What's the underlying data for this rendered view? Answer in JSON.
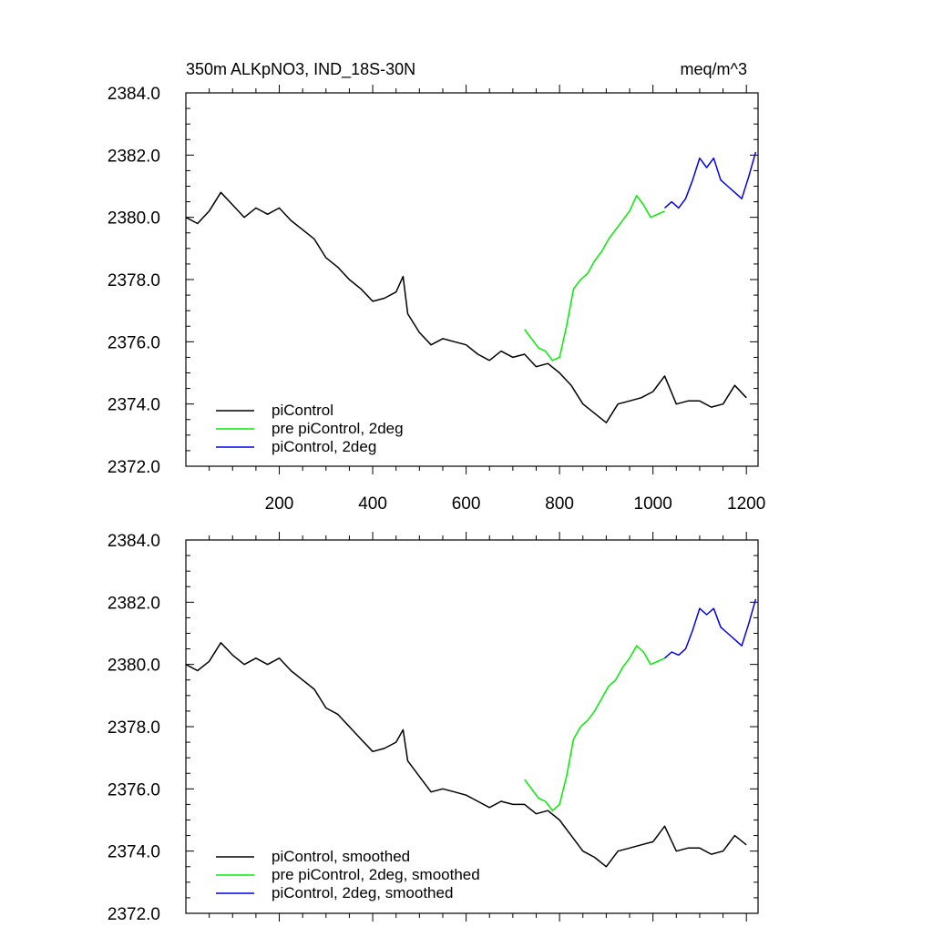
{
  "chart_data": [
    {
      "type": "line",
      "title": "350m ALKpNO3, IND_18S-30N",
      "units": "meq/m^3",
      "xlim": [
        0,
        1225
      ],
      "ylim": [
        2372.0,
        2384.0
      ],
      "yticks": [
        "2372.0",
        "2374.0",
        "2376.0",
        "2378.0",
        "2380.0",
        "2382.0",
        "2384.0"
      ],
      "xticks": [
        "200",
        "400",
        "600",
        "800",
        "1000",
        "1200"
      ],
      "series": [
        {
          "name": "piControl",
          "color": "#000000",
          "x": [
            0,
            25,
            50,
            75,
            100,
            125,
            150,
            175,
            200,
            225,
            250,
            275,
            300,
            325,
            350,
            375,
            400,
            425,
            450,
            465,
            475,
            500,
            525,
            550,
            575,
            600,
            625,
            650,
            675,
            700,
            725,
            750,
            775,
            800,
            825,
            850,
            875,
            900,
            925,
            950,
            975,
            1000,
            1025,
            1050,
            1075,
            1100,
            1125,
            1150,
            1175,
            1200
          ],
          "y": [
            2380.0,
            2379.8,
            2380.2,
            2380.8,
            2380.4,
            2380.0,
            2380.3,
            2380.1,
            2380.3,
            2379.9,
            2379.6,
            2379.3,
            2378.7,
            2378.4,
            2378.0,
            2377.7,
            2377.3,
            2377.4,
            2377.6,
            2378.1,
            2376.9,
            2376.3,
            2375.9,
            2376.1,
            2376.0,
            2375.9,
            2375.6,
            2375.4,
            2375.7,
            2375.5,
            2375.6,
            2375.2,
            2375.3,
            2375.0,
            2374.6,
            2374.0,
            2373.7,
            2373.4,
            2374.0,
            2374.1,
            2374.2,
            2374.4,
            2374.9,
            2374.0,
            2374.1,
            2374.1,
            2373.9,
            2374.0,
            2374.6,
            2374.2
          ]
        },
        {
          "name": "pre piControl, 2deg",
          "color": "#00ee00",
          "x": [
            725,
            740,
            755,
            770,
            785,
            800,
            815,
            830,
            845,
            860,
            875,
            890,
            905,
            920,
            935,
            950,
            965,
            980,
            995,
            1010,
            1025
          ],
          "y": [
            2376.4,
            2376.1,
            2375.8,
            2375.7,
            2375.4,
            2375.5,
            2376.5,
            2377.7,
            2378.0,
            2378.2,
            2378.6,
            2378.9,
            2379.3,
            2379.6,
            2379.9,
            2380.2,
            2380.7,
            2380.4,
            2380.0,
            2380.1,
            2380.2
          ]
        },
        {
          "name": "piControl, 2deg",
          "color": "#0000ee",
          "x": [
            1025,
            1040,
            1055,
            1070,
            1085,
            1100,
            1115,
            1130,
            1145,
            1160,
            1175,
            1190,
            1205,
            1220
          ],
          "y": [
            2380.3,
            2380.5,
            2380.3,
            2380.6,
            2381.2,
            2381.9,
            2381.6,
            2381.9,
            2381.2,
            2381.0,
            2380.8,
            2380.6,
            2381.3,
            2382.1
          ]
        }
      ]
    },
    {
      "type": "line",
      "xlim": [
        0,
        1225
      ],
      "ylim": [
        2372.0,
        2384.0
      ],
      "yticks": [
        "2372.0",
        "2374.0",
        "2376.0",
        "2378.0",
        "2380.0",
        "2382.0",
        "2384.0"
      ],
      "series": [
        {
          "name": "piControl, smoothed",
          "color": "#000000",
          "x": [
            0,
            25,
            50,
            75,
            100,
            125,
            150,
            175,
            200,
            225,
            250,
            275,
            300,
            325,
            350,
            375,
            400,
            425,
            450,
            465,
            475,
            500,
            525,
            550,
            575,
            600,
            625,
            650,
            675,
            700,
            725,
            750,
            775,
            800,
            825,
            850,
            875,
            900,
            925,
            950,
            975,
            1000,
            1025,
            1050,
            1075,
            1100,
            1125,
            1150,
            1175,
            1200
          ],
          "y": [
            2380.0,
            2379.8,
            2380.1,
            2380.7,
            2380.3,
            2380.0,
            2380.2,
            2380.0,
            2380.2,
            2379.8,
            2379.5,
            2379.2,
            2378.6,
            2378.4,
            2378.0,
            2377.6,
            2377.2,
            2377.3,
            2377.5,
            2377.9,
            2376.9,
            2376.4,
            2375.9,
            2376.0,
            2375.9,
            2375.8,
            2375.6,
            2375.4,
            2375.6,
            2375.5,
            2375.5,
            2375.2,
            2375.3,
            2375.0,
            2374.5,
            2374.0,
            2373.8,
            2373.5,
            2374.0,
            2374.1,
            2374.2,
            2374.3,
            2374.8,
            2374.0,
            2374.1,
            2374.1,
            2373.9,
            2374.0,
            2374.5,
            2374.2
          ]
        },
        {
          "name": "pre piControl, 2deg, smoothed",
          "color": "#00ee00",
          "x": [
            725,
            740,
            755,
            770,
            785,
            800,
            815,
            830,
            845,
            860,
            875,
            890,
            905,
            920,
            935,
            950,
            965,
            980,
            995,
            1010,
            1025
          ],
          "y": [
            2376.3,
            2376.0,
            2375.7,
            2375.6,
            2375.3,
            2375.5,
            2376.4,
            2377.6,
            2378.0,
            2378.2,
            2378.5,
            2378.9,
            2379.3,
            2379.5,
            2379.9,
            2380.2,
            2380.6,
            2380.4,
            2380.0,
            2380.1,
            2380.2
          ]
        },
        {
          "name": "piControl, 2deg, smoothed",
          "color": "#0000ee",
          "x": [
            1025,
            1040,
            1055,
            1070,
            1085,
            1100,
            1115,
            1130,
            1145,
            1160,
            1175,
            1190,
            1205,
            1220
          ],
          "y": [
            2380.2,
            2380.4,
            2380.3,
            2380.5,
            2381.1,
            2381.8,
            2381.6,
            2381.8,
            2381.2,
            2381.0,
            2380.8,
            2380.6,
            2381.3,
            2382.1
          ]
        }
      ]
    }
  ]
}
